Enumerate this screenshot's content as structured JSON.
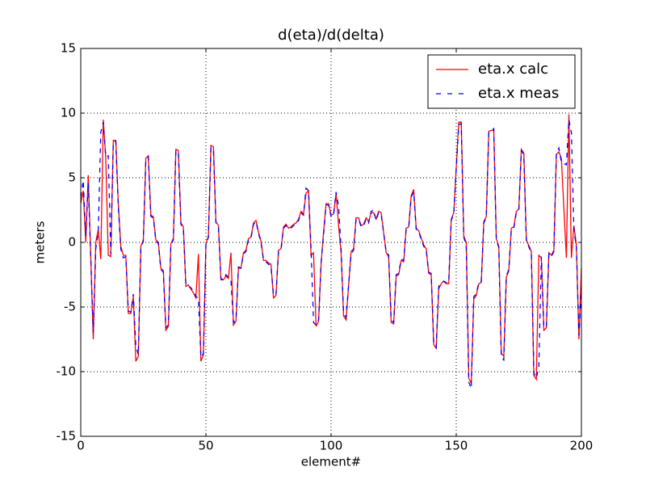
{
  "chart_data": {
    "type": "line",
    "title": "d(eta)/d(delta)",
    "x_label": "element#",
    "y_label": "meters",
    "xlim": [
      0,
      200
    ],
    "xticks": [
      0,
      50,
      100,
      150,
      200
    ],
    "ylim": [
      -15,
      15
    ],
    "yticks": [
      -15,
      -10,
      -5,
      0,
      5,
      10,
      15
    ],
    "grid": true,
    "legend": "upper right",
    "x": [
      0,
      1,
      2,
      3,
      5,
      6,
      7,
      8,
      9,
      10,
      11,
      12,
      13,
      14,
      15,
      16,
      17,
      18,
      19,
      20,
      21,
      22,
      23,
      24,
      25,
      26,
      27,
      28,
      29,
      30,
      31,
      32,
      33,
      34,
      35,
      36,
      37,
      38,
      39,
      40,
      41,
      42,
      43,
      44,
      45,
      46,
      47,
      48,
      49,
      50,
      51,
      52,
      53,
      54,
      55,
      56,
      57,
      58,
      59,
      60,
      61,
      62,
      63,
      64,
      65,
      66,
      67,
      68,
      69,
      70,
      71,
      72,
      73,
      74,
      75,
      76,
      77,
      78,
      79,
      80,
      81,
      82,
      83,
      84,
      85,
      86,
      87,
      88,
      89,
      90,
      91,
      92,
      93,
      94,
      95,
      96,
      97,
      98,
      99,
      100,
      101,
      102,
      103,
      104,
      105,
      106,
      108,
      109,
      110,
      111,
      112,
      113,
      114,
      115,
      116,
      117,
      118,
      119,
      120,
      122,
      123,
      124,
      125,
      126,
      127,
      128,
      129,
      130,
      131,
      132,
      133,
      134,
      135,
      137,
      138,
      139,
      140,
      141,
      142,
      143,
      144,
      145,
      146,
      147,
      148,
      149,
      151,
      152,
      153,
      154,
      155,
      156,
      157,
      158,
      159,
      160,
      161,
      162,
      163,
      165,
      166,
      167,
      168,
      169,
      170,
      171,
      172,
      173,
      174,
      175,
      176,
      177,
      178,
      180,
      181,
      182,
      183,
      184,
      185,
      186,
      187,
      188,
      189,
      190,
      191,
      192,
      194,
      195,
      196,
      197,
      198,
      199,
      200
    ],
    "series": [
      {
        "name": "eta.x calc",
        "color": "#ff0000",
        "linestyle": "solid",
        "values": [
          3,
          4,
          0,
          5.2,
          -7.5,
          0,
          1,
          -1.3,
          9.5,
          6.5,
          -1,
          -1.1,
          7.9,
          7.9,
          3,
          -0.3,
          -1,
          -1,
          -5.5,
          -5.5,
          -4.2,
          -9.2,
          -8.8,
          -0.3,
          0.2,
          6.5,
          6.7,
          2.1,
          2,
          0.2,
          0,
          -2,
          -2.2,
          -6.8,
          -6.5,
          -0.1,
          0.3,
          7.2,
          7.1,
          1.5,
          1.2,
          -3.4,
          -3.3,
          -3.6,
          -3.9,
          -4.3,
          -0.9,
          -9.2,
          -8.7,
          -0.1,
          0.5,
          7.5,
          7.4,
          1.6,
          1.3,
          -2.9,
          -2.9,
          -2.6,
          -2.8,
          -0.8,
          -6.4,
          -6.1,
          -2,
          -2,
          -0.8,
          -0.6,
          0.3,
          0.4,
          1.5,
          1.7,
          0.8,
          0.1,
          -1.4,
          -1.4,
          -1.6,
          -1.7,
          -4.3,
          -4.1,
          -0.6,
          -0.5,
          1.2,
          1.4,
          1.1,
          1.2,
          1.4,
          1.5,
          1.8,
          2.4,
          2.2,
          3.8,
          4,
          -1,
          -0.8,
          -6.5,
          -6.1,
          -1.7,
          0.8,
          3,
          3,
          2.1,
          2.2,
          3.8,
          1.3,
          -0.8,
          -5.7,
          -6,
          -0.7,
          -0.5,
          1.9,
          1.9,
          1.3,
          1.4,
          1.9,
          1.6,
          2.3,
          2.3,
          1.8,
          2.4,
          2.3,
          -0.8,
          -1.1,
          -6.2,
          -6.3,
          -2.6,
          -2.5,
          -1.4,
          -1.5,
          1.1,
          1.2,
          3.6,
          4.1,
          1.1,
          0.9,
          -0.2,
          -0.5,
          -2.4,
          -2.5,
          -7.9,
          -8.2,
          -3.6,
          -3.2,
          -3,
          -3.2,
          -3.2,
          1.8,
          2.3,
          9.3,
          9.3,
          0.5,
          0,
          -10.5,
          -10.9,
          -4.4,
          -4.1,
          -3.2,
          -3.1,
          1.6,
          2,
          8.6,
          8.7,
          0.3,
          -0.3,
          -8.6,
          -8.8,
          -2.7,
          -2.2,
          1.1,
          1.2,
          2.4,
          2.6,
          7.2,
          6.9,
          0.2,
          -0.7,
          -10.3,
          -10.6,
          -1,
          -1.2,
          -6.8,
          -6.6,
          -0.8,
          -1,
          -0.6,
          6.8,
          7,
          6.5,
          -1.2,
          9.9,
          -1.2,
          1.3,
          -0.2,
          -7.5,
          -2
        ]
      },
      {
        "name": "eta.x meas",
        "color": "#0000ff",
        "linestyle": "dashed",
        "values": [
          3.5,
          4.8,
          0.5,
          4.6,
          -7,
          -0.5,
          0.8,
          8.5,
          9.3,
          6.6,
          6.7,
          -0.9,
          7.8,
          7.8,
          2.8,
          -0.5,
          -1.2,
          -1.1,
          -5.3,
          -5.4,
          -4,
          -8,
          -8.7,
          -0.5,
          0.1,
          6.4,
          6.6,
          2,
          1.9,
          0.1,
          -0.1,
          -2.1,
          -2.3,
          -6.6,
          -6.4,
          -0.2,
          0.2,
          7.1,
          7,
          1.4,
          1.1,
          -3.3,
          -3.4,
          -3.5,
          -3.8,
          -4.2,
          -4.3,
          -8.9,
          -8.6,
          -0.2,
          0.4,
          7.3,
          7.3,
          1.5,
          1.2,
          -2.8,
          -2.9,
          -2.5,
          -2.7,
          -2.9,
          -6.2,
          -6,
          -1.9,
          -2,
          -0.9,
          -0.7,
          0.2,
          0.3,
          1.4,
          1.6,
          0.7,
          0,
          -1.3,
          -1.5,
          -1.7,
          -1.8,
          -4.1,
          -4,
          -0.7,
          -0.6,
          1.1,
          1.3,
          1.1,
          1.1,
          1.3,
          1.4,
          1.7,
          2.3,
          2.1,
          4.2,
          4,
          -0.5,
          -6.2,
          -6.4,
          -6,
          -1.6,
          0.6,
          2.9,
          2.9,
          2,
          2.1,
          3.9,
          2.8,
          -0.5,
          -5.5,
          -5.8,
          -0.9,
          -0.6,
          1.8,
          1.8,
          1.2,
          1.3,
          1.8,
          1.5,
          2.4,
          2.5,
          1.7,
          2.3,
          2.2,
          -0.7,
          -1,
          -6,
          -6.2,
          -2.5,
          -2.4,
          -1.3,
          -1.4,
          1,
          1.1,
          3.5,
          3.9,
          1,
          0.8,
          -0.3,
          -0.6,
          -2.3,
          -2.4,
          -7.8,
          -8.1,
          -3.4,
          -3.1,
          -3,
          -3.1,
          -3.1,
          1.7,
          2.2,
          9.1,
          9.2,
          0.4,
          -0.2,
          -10.8,
          -11.3,
          -4.2,
          -4,
          -3.1,
          -3,
          1.5,
          1.9,
          8.5,
          8.8,
          0.2,
          -0.4,
          -8.9,
          -9.1,
          -2.6,
          -2.1,
          1,
          1.1,
          2.3,
          2.5,
          7.1,
          6.8,
          0.1,
          -0.8,
          -10.1,
          -10.5,
          -9.6,
          -1.1,
          -6.6,
          -6.5,
          -0.9,
          -1.1,
          -0.7,
          6.9,
          7.3,
          6.2,
          6,
          9.5,
          8.5,
          1,
          -0.4,
          -7.2,
          -3.5
        ]
      }
    ]
  }
}
